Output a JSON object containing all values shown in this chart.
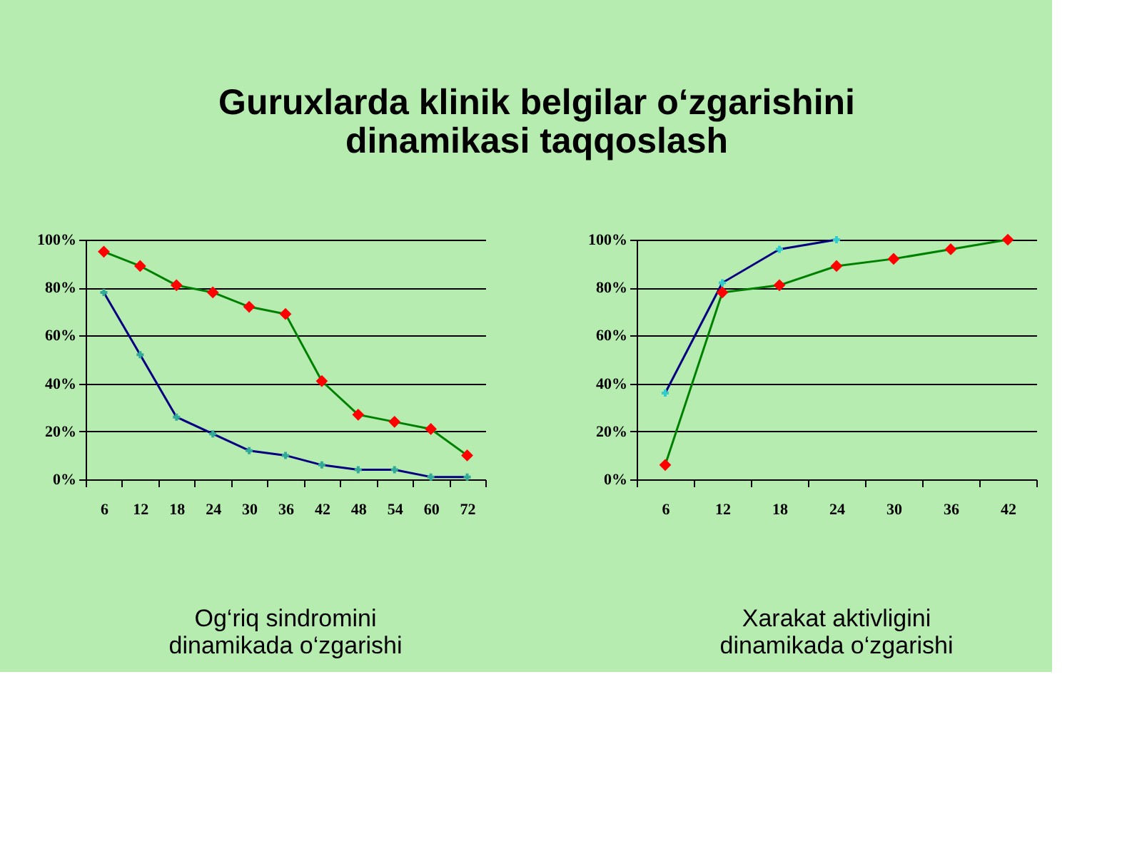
{
  "chart_data": [
    {
      "type": "line",
      "title": "Guruxlarda klinik belgilar o‘zgarishini\ndinamikasi taqqoslash",
      "categories": [
        "6",
        "12",
        "18",
        "24",
        "30",
        "36",
        "42",
        "48",
        "54",
        "60",
        "72"
      ],
      "series": [
        {
          "color": "#008000",
          "marker": "diamond",
          "colors": [
            "#ff0000",
            "#ff0000",
            "#ff0000",
            "#ff0000",
            "#ff0000",
            "#ff0000",
            "#ff0000",
            "#ff0000",
            "#ff0000",
            "#ff0000",
            "#ff0000"
          ],
          "values": [
            95,
            89,
            81,
            78,
            72,
            69,
            41,
            27,
            24,
            21,
            10
          ]
        },
        {
          "color": "#000080",
          "marker": "cross",
          "colors": [
            "#33aa99",
            "#33aa99",
            "#33aa99",
            "#33aa99",
            "#33aa99",
            "#33aa99",
            "#33aa99",
            "#33aa99",
            "#33aa99",
            "#33aa99",
            "#33aa99"
          ],
          "values": [
            78,
            52,
            26,
            19,
            12,
            10,
            6,
            4,
            4,
            1,
            1
          ]
        }
      ],
      "ylim": [
        0,
        100
      ],
      "yticks": [
        {
          "value": 0,
          "label": "0%"
        },
        {
          "value": 20,
          "label": "20%"
        },
        {
          "value": 40,
          "label": "40%"
        },
        {
          "value": 60,
          "label": "60%"
        },
        {
          "value": 80,
          "label": "80%"
        },
        {
          "value": 100,
          "label": "100%"
        }
      ],
      "grid": "y",
      "annotations": [
        "Og‘riq sindromini\ndinamikada o‘zgarishi"
      ]
    },
    {
      "type": "line",
      "categories": [
        "6",
        "12",
        "18",
        "24",
        "30",
        "36",
        "42"
      ],
      "series": [
        {
          "color": "#000080",
          "marker": "cross",
          "colors": [
            "#33cccc",
            "#33cccc",
            "#33cccc",
            "#33cccc",
            null,
            null,
            null
          ],
          "values": [
            36,
            82,
            96,
            100,
            null,
            null,
            null
          ]
        },
        {
          "color": "#008000",
          "marker": "diamond",
          "colors": [
            "#ff0000",
            "#ff0000",
            "#ff0000",
            "#ff0000",
            "#ff0000",
            "#ff0000",
            "#ff0000"
          ],
          "values": [
            6,
            78,
            81,
            89,
            92,
            96,
            100
          ]
        }
      ],
      "ylim": [
        0,
        100
      ],
      "yticks": [
        {
          "value": 0,
          "label": "0%"
        },
        {
          "value": 20,
          "label": "20%"
        },
        {
          "value": 40,
          "label": "40%"
        },
        {
          "value": 60,
          "label": "60%"
        },
        {
          "value": 80,
          "label": "80%"
        },
        {
          "value": 100,
          "label": "100%"
        }
      ],
      "grid": "y",
      "annotations": [
        "Xarakat aktivligini\ndinamikada o‘zgarishi"
      ]
    }
  ]
}
